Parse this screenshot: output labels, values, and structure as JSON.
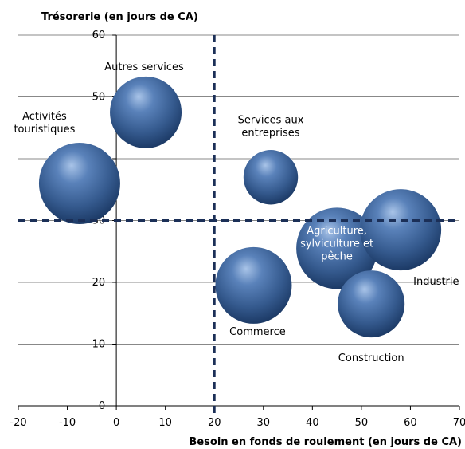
{
  "chart_data": {
    "type": "bubble",
    "xlabel": "Besoin en fonds de roulement (en jours de CA)",
    "ylabel": "Trésorerie (en jours de CA)",
    "xlim": [
      -20,
      70
    ],
    "ylim": [
      0,
      60
    ],
    "x_ticks": [
      "-20",
      "-10",
      "0",
      "10",
      "20",
      "30",
      "40",
      "50",
      "60",
      "70"
    ],
    "y_ticks": [
      "0",
      "10",
      "20",
      "30",
      "40",
      "50",
      "60"
    ],
    "grid": "horizontal",
    "reference_lines": {
      "x": 20,
      "y": 30
    },
    "colors": {
      "bubble": "#3a5f94",
      "bubble_dark": "#1c3a66",
      "bubble_light": "#a9c4e8",
      "reference_line": "#1b2f57",
      "grid": "#888888"
    },
    "points": [
      {
        "name": "Activités touristiques",
        "label_lines": [
          "Activités",
          "touristiques"
        ],
        "x": -7.5,
        "y": 36,
        "size": 8.5
      },
      {
        "name": "Autres services",
        "label_lines": [
          "Autres services"
        ],
        "x": 6,
        "y": 47.5,
        "size": 7.5
      },
      {
        "name": "Services aux entreprises",
        "label_lines": [
          "Services aux",
          "entreprises"
        ],
        "x": 31.5,
        "y": 37,
        "size": 5.7
      },
      {
        "name": "Commerce",
        "label_lines": [
          "Commerce"
        ],
        "x": 28,
        "y": 19.5,
        "size": 8
      },
      {
        "name": "Agriculture, sylviculture et pêche",
        "label_lines": [
          "Agriculture,",
          "sylviculture et",
          "pêche"
        ],
        "x": 45,
        "y": 25.5,
        "size": 8.5
      },
      {
        "name": "Construction",
        "label_lines": [
          "Construction"
        ],
        "x": 52,
        "y": 16.5,
        "size": 7
      },
      {
        "name": "Industrie",
        "label_lines": [
          "Industrie"
        ],
        "x": 58,
        "y": 28.5,
        "size": 8.5
      }
    ]
  }
}
